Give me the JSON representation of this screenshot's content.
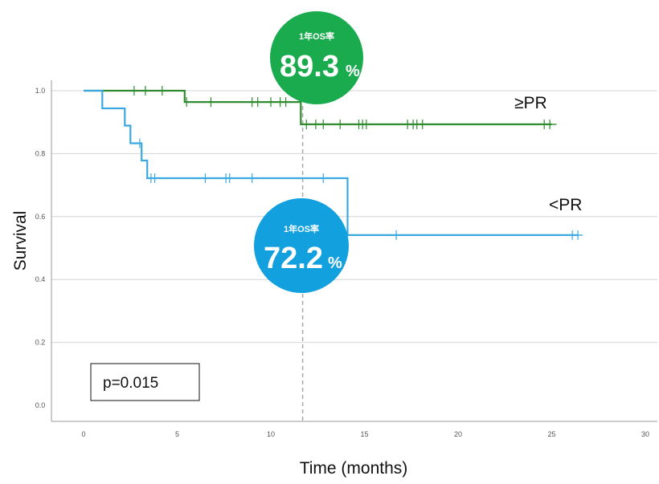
{
  "chart_data": {
    "type": "line",
    "subtype": "kaplan-meier",
    "xlabel": "Time (months)",
    "ylabel": "Survival",
    "xlim": [
      0,
      30
    ],
    "ylim": [
      0,
      1.0
    ],
    "x_ticks": [
      "0",
      "5",
      "10",
      "15",
      "20",
      "25",
      "30"
    ],
    "y_ticks": [
      "0.0",
      "0.2",
      "0.4",
      "0.6",
      "0.8",
      "1.0"
    ],
    "grid": "horizontal",
    "reference_line_x": 11.7,
    "p_value_text": "p=0.015",
    "series": [
      {
        "name": "≥PR",
        "color": "#2e8b2e",
        "steps": [
          [
            0,
            1.0
          ],
          [
            5.4,
            1.0
          ],
          [
            5.4,
            0.964
          ],
          [
            11.6,
            0.964
          ],
          [
            11.6,
            0.893
          ],
          [
            25.0,
            0.893
          ]
        ],
        "censored": [
          2.7,
          3.3,
          4.2,
          5.5,
          6.8,
          9.0,
          9.3,
          10.0,
          10.5,
          10.8,
          11.9,
          12.4,
          12.8,
          13.7,
          14.7,
          14.9,
          15.1,
          17.3,
          17.6,
          17.8,
          18.1,
          24.6,
          24.9
        ]
      },
      {
        "name": "<PR",
        "color": "#3ba9e0",
        "steps": [
          [
            0,
            1.0
          ],
          [
            1.0,
            1.0
          ],
          [
            1.0,
            0.944
          ],
          [
            2.2,
            0.944
          ],
          [
            2.2,
            0.889
          ],
          [
            2.5,
            0.889
          ],
          [
            2.5,
            0.833
          ],
          [
            3.1,
            0.833
          ],
          [
            3.1,
            0.778
          ],
          [
            3.4,
            0.778
          ],
          [
            3.4,
            0.722
          ],
          [
            14.1,
            0.722
          ],
          [
            14.1,
            0.541
          ],
          [
            26.4,
            0.541
          ]
        ],
        "censored": [
          3.0,
          3.6,
          3.8,
          6.5,
          7.6,
          7.8,
          9.0,
          12.8,
          16.7,
          26.1,
          26.4
        ]
      }
    ],
    "annotations": [
      {
        "caption": "1年OS率",
        "value": "89.3",
        "unit": "%",
        "color": "#1aab4e"
      },
      {
        "caption": "1年OS率",
        "value": "72.2",
        "unit": "%",
        "color": "#12a0df"
      }
    ]
  }
}
